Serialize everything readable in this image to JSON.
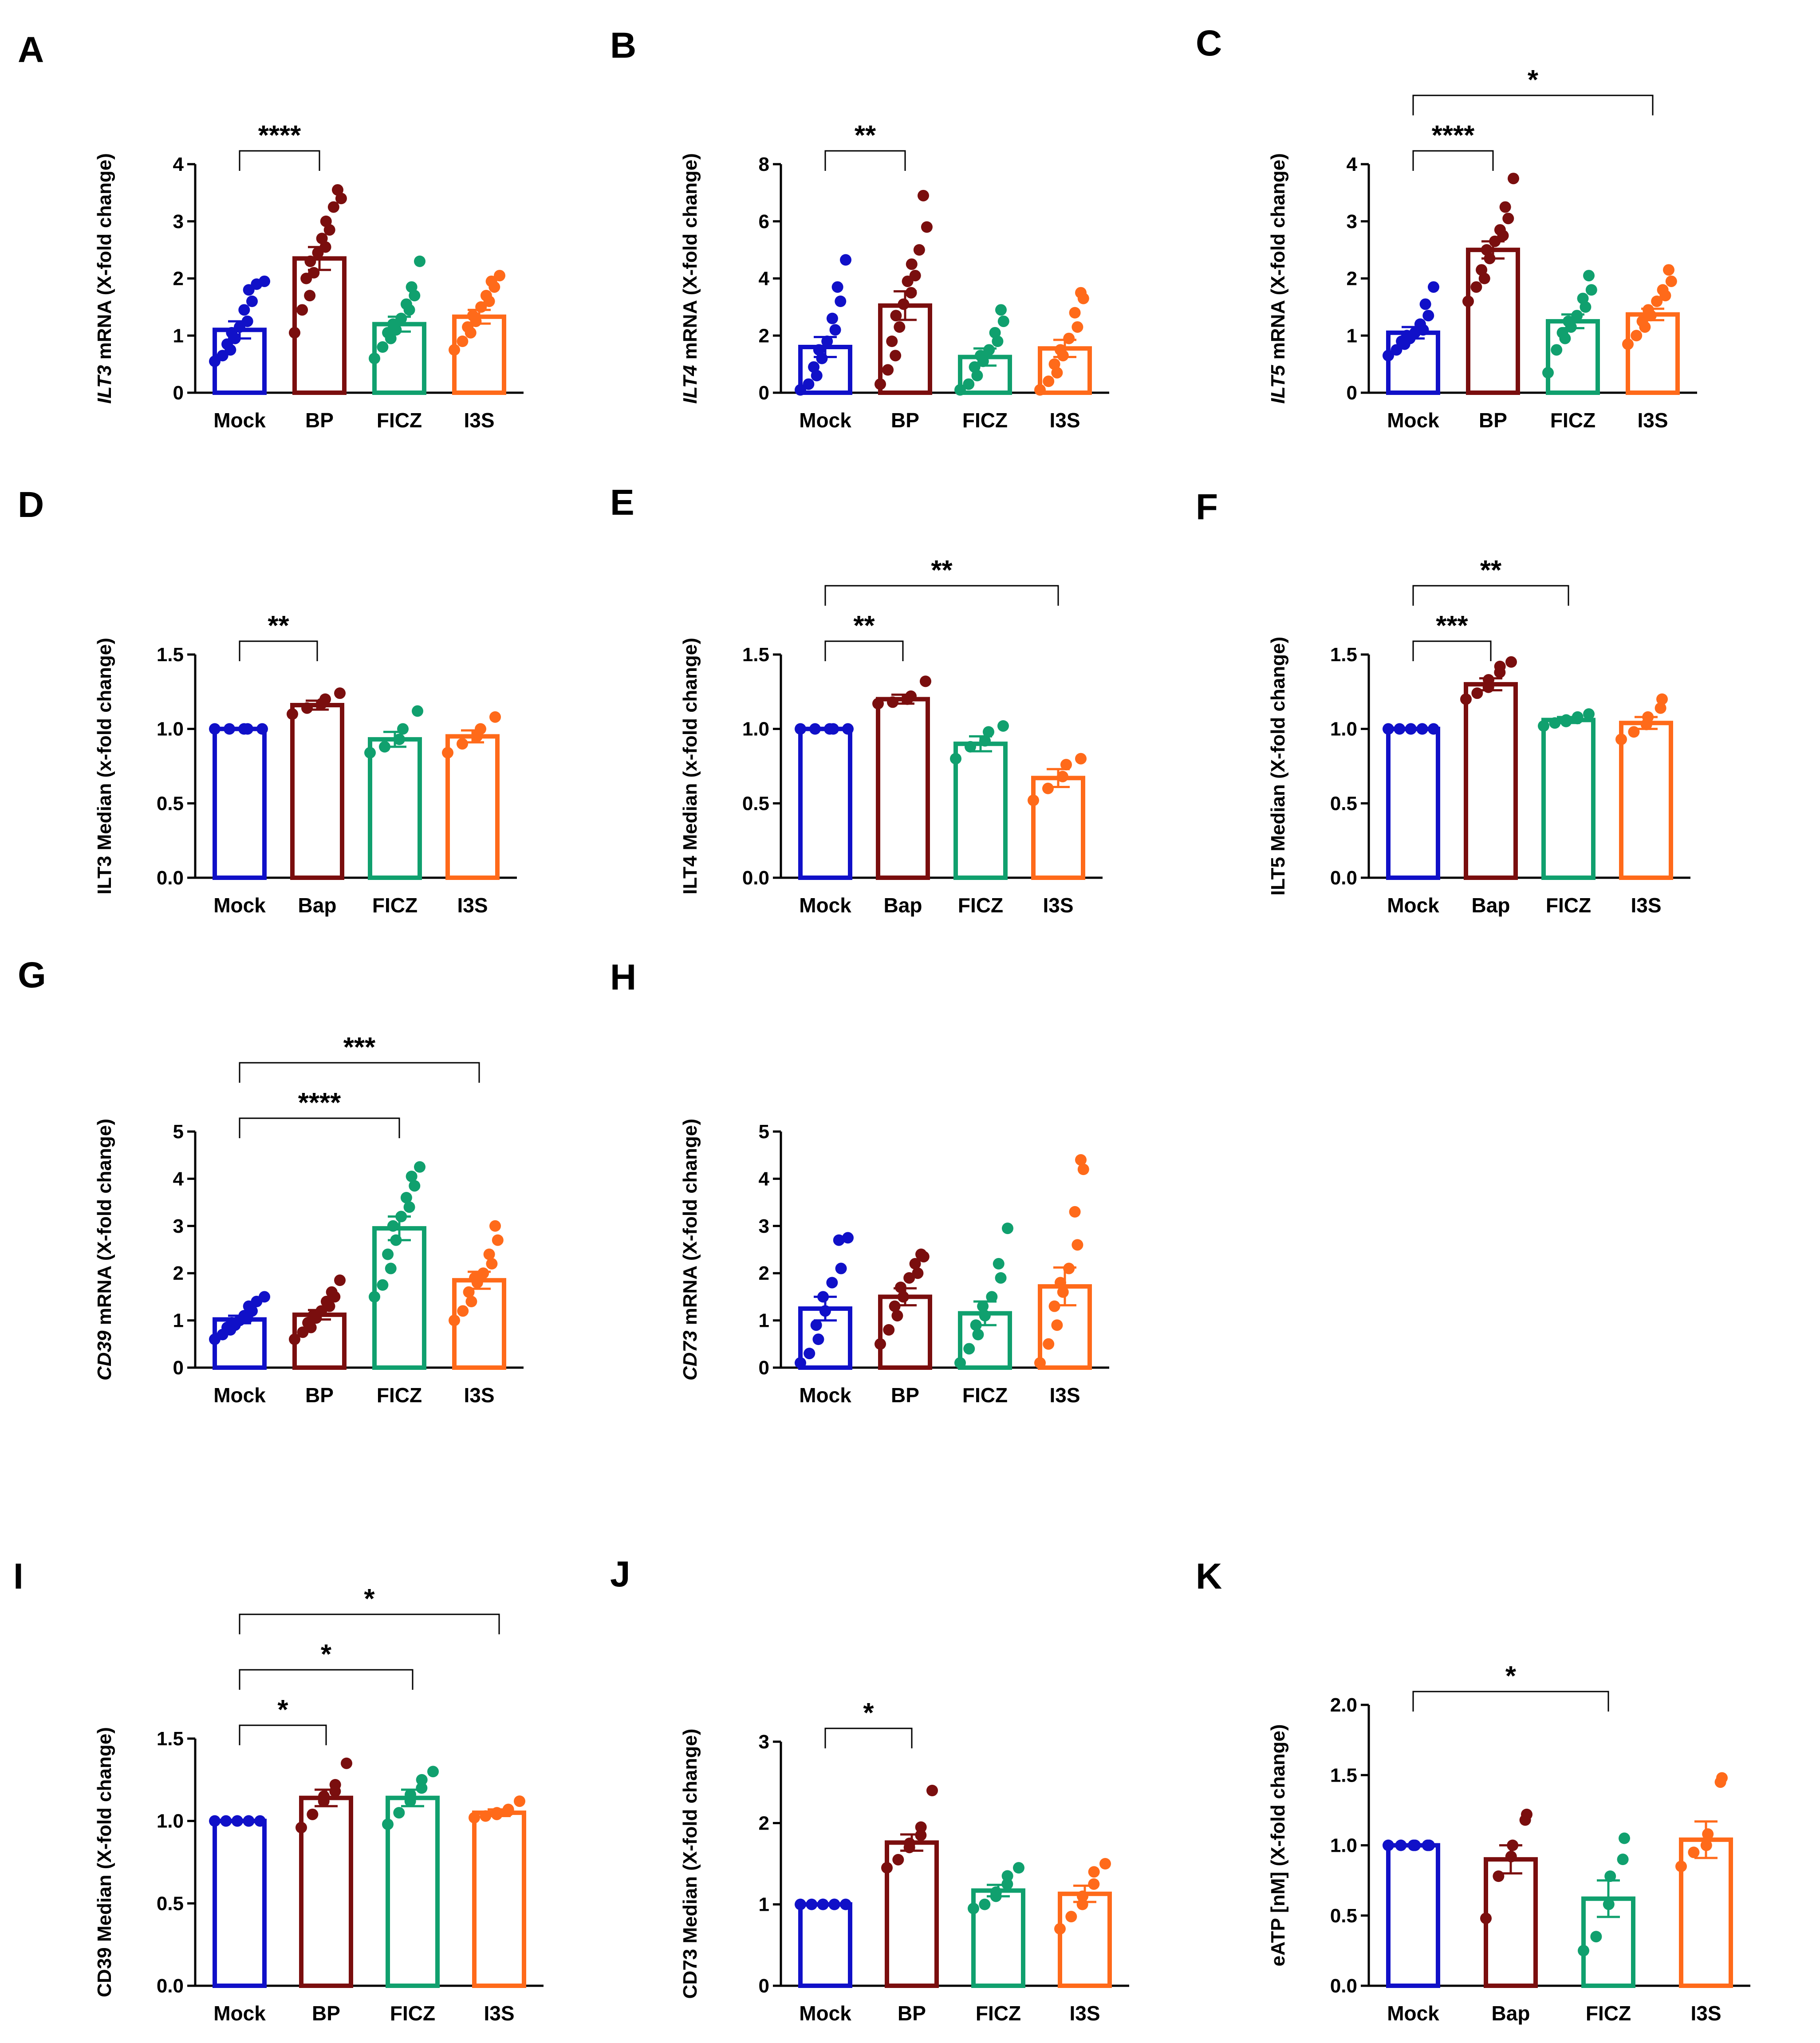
{
  "colors": {
    "Mock": "#1010c8",
    "BP": "#7a0e0e",
    "Bap": "#7a0e0e",
    "FICZ": "#10a06e",
    "I3S": "#ff6a1a"
  },
  "chart_data": [
    {
      "panel": "A",
      "type": "bar",
      "ylabel_italic": "ILT3",
      "ylabel": "mRNA (X-fold change)",
      "ylim": [
        0,
        4
      ],
      "yticks": [
        "0",
        "1",
        "2",
        "3",
        "4"
      ],
      "categories": [
        "Mock",
        "BP",
        "FICZ",
        "I3S"
      ],
      "values": [
        1.1,
        2.35,
        1.2,
        1.33
      ],
      "errors": [
        0.15,
        0.2,
        0.13,
        0.12
      ],
      "points": [
        [
          0.55,
          0.65,
          0.75,
          0.85,
          0.95,
          1.05,
          1.15,
          1.25,
          1.45,
          1.6,
          1.8,
          1.9,
          1.95
        ],
        [
          1.05,
          1.45,
          1.7,
          2.0,
          2.1,
          2.3,
          2.45,
          2.55,
          2.7,
          2.85,
          3.0,
          3.25,
          3.4,
          3.55
        ],
        [
          0.6,
          0.8,
          0.95,
          1.05,
          1.1,
          1.2,
          1.3,
          1.45,
          1.55,
          1.7,
          1.85,
          2.3
        ],
        [
          0.75,
          0.9,
          1.05,
          1.15,
          1.25,
          1.35,
          1.5,
          1.6,
          1.7,
          1.85,
          1.95,
          2.05
        ]
      ],
      "significance": [
        {
          "from": 0,
          "to": 1,
          "label": "****"
        }
      ]
    },
    {
      "panel": "B",
      "type": "bar",
      "ylabel_italic": "ILT4",
      "ylabel": "mRNA (X-fold change)",
      "ylim": [
        0,
        8
      ],
      "yticks": [
        "0",
        "2",
        "4",
        "6",
        "8"
      ],
      "categories": [
        "Mock",
        "BP",
        "FICZ",
        "I3S"
      ],
      "values": [
        1.6,
        3.05,
        1.25,
        1.55
      ],
      "errors": [
        0.35,
        0.5,
        0.3,
        0.3
      ],
      "points": [
        [
          0.1,
          0.3,
          0.6,
          0.9,
          1.2,
          1.5,
          1.8,
          2.2,
          2.6,
          3.2,
          3.7,
          4.65
        ],
        [
          0.3,
          0.8,
          1.3,
          1.8,
          2.3,
          2.7,
          3.1,
          3.5,
          3.9,
          4.1,
          4.5,
          5.0,
          5.8,
          6.9
        ],
        [
          0.1,
          0.3,
          0.6,
          0.9,
          1.1,
          1.3,
          1.5,
          1.8,
          2.1,
          2.5,
          2.9
        ],
        [
          0.1,
          0.4,
          0.7,
          1.0,
          1.3,
          1.5,
          1.9,
          2.3,
          2.8,
          3.3,
          3.5
        ]
      ],
      "significance": [
        {
          "from": 0,
          "to": 1,
          "label": "**"
        }
      ]
    },
    {
      "panel": "C",
      "type": "bar",
      "ylabel_italic": "ILT5",
      "ylabel": "mRNA (X-fold change)",
      "ylim": [
        0,
        4
      ],
      "yticks": [
        "0",
        "1",
        "2",
        "3",
        "4"
      ],
      "categories": [
        "Mock",
        "BP",
        "FICZ",
        "I3S"
      ],
      "values": [
        1.05,
        2.5,
        1.25,
        1.37
      ],
      "errors": [
        0.1,
        0.15,
        0.12,
        0.1
      ],
      "points": [
        [
          0.65,
          0.75,
          0.85,
          0.9,
          0.95,
          1.0,
          1.05,
          1.1,
          1.2,
          1.35,
          1.55,
          1.85
        ],
        [
          1.6,
          1.85,
          2.0,
          2.15,
          2.35,
          2.5,
          2.65,
          2.75,
          2.85,
          3.05,
          3.25,
          3.75
        ],
        [
          0.35,
          0.75,
          0.95,
          1.05,
          1.15,
          1.25,
          1.35,
          1.5,
          1.65,
          1.8,
          2.05
        ],
        [
          0.85,
          1.0,
          1.15,
          1.25,
          1.35,
          1.45,
          1.6,
          1.7,
          1.8,
          1.95,
          2.15
        ]
      ],
      "significance": [
        {
          "from": 0,
          "to": 1,
          "label": "****"
        },
        {
          "from": 0,
          "to": 3,
          "label": "*"
        }
      ]
    },
    {
      "panel": "D",
      "type": "bar",
      "ylabel": "ILT3 Median (x-fold change)",
      "ylim": [
        0,
        1.5
      ],
      "yticks": [
        "0.0",
        "0.5",
        "1.0",
        "1.5"
      ],
      "categories": [
        "Mock",
        "Bap",
        "FICZ",
        "I3S"
      ],
      "values": [
        1.0,
        1.16,
        0.93,
        0.95
      ],
      "errors": [
        0.0,
        0.03,
        0.05,
        0.04
      ],
      "points": [
        [
          1.0,
          1.0,
          1.0,
          1.0,
          1.0
        ],
        [
          1.1,
          1.14,
          1.17,
          1.2,
          1.24
        ],
        [
          0.84,
          0.88,
          0.93,
          1.0,
          1.12
        ],
        [
          0.84,
          0.9,
          0.95,
          1.0,
          1.08
        ]
      ],
      "significance": [
        {
          "from": 0,
          "to": 1,
          "label": "**"
        }
      ]
    },
    {
      "panel": "E",
      "type": "bar",
      "ylabel": "ILT4 Median (x-fold change)",
      "ylim": [
        0,
        1.5
      ],
      "yticks": [
        "0.0",
        "0.5",
        "1.0",
        "1.5"
      ],
      "categories": [
        "Mock",
        "Bap",
        "FICZ",
        "I3S"
      ],
      "values": [
        1.0,
        1.2,
        0.9,
        0.67
      ],
      "errors": [
        0.0,
        0.03,
        0.05,
        0.06
      ],
      "points": [
        [
          1.0,
          1.0,
          1.0,
          1.0,
          1.0
        ],
        [
          1.17,
          1.18,
          1.2,
          1.22,
          1.32
        ],
        [
          0.8,
          0.88,
          0.92,
          0.98,
          1.02
        ],
        [
          0.52,
          0.6,
          0.68,
          0.76,
          0.8
        ]
      ],
      "significance": [
        {
          "from": 0,
          "to": 1,
          "label": "**"
        },
        {
          "from": 0,
          "to": 3,
          "label": "**"
        }
      ]
    },
    {
      "panel": "F",
      "type": "bar",
      "ylabel": "ILT5 Median (X-fold change)",
      "ylim": [
        0,
        1.5
      ],
      "yticks": [
        "0.0",
        "0.5",
        "1.0",
        "1.5"
      ],
      "categories": [
        "Mock",
        "Bap",
        "FICZ",
        "I3S"
      ],
      "values": [
        1.0,
        1.3,
        1.06,
        1.04
      ],
      "errors": [
        0.0,
        0.04,
        0.02,
        0.04
      ],
      "points": [
        [
          1.0,
          1.0,
          1.0,
          1.0,
          1.0,
          1.0,
          1.0
        ],
        [
          1.2,
          1.24,
          1.28,
          1.33,
          1.38,
          1.42,
          1.45
        ],
        [
          1.02,
          1.04,
          1.05,
          1.06,
          1.07,
          1.08,
          1.1
        ],
        [
          0.93,
          0.98,
          1.03,
          1.08,
          1.14,
          1.2
        ]
      ],
      "significance": [
        {
          "from": 0,
          "to": 1,
          "label": "***"
        },
        {
          "from": 0,
          "to": 2,
          "label": "**"
        }
      ]
    },
    {
      "panel": "G",
      "type": "bar",
      "ylabel_italic": "CD39",
      "ylabel": "mRNA (X-fold change)",
      "ylim": [
        0,
        5
      ],
      "yticks": [
        "0",
        "1",
        "2",
        "3",
        "4",
        "5"
      ],
      "categories": [
        "Mock",
        "BP",
        "FICZ",
        "I3S"
      ],
      "values": [
        1.02,
        1.12,
        2.95,
        1.85
      ],
      "errors": [
        0.08,
        0.1,
        0.25,
        0.18
      ],
      "points": [
        [
          0.6,
          0.7,
          0.8,
          0.85,
          0.9,
          0.95,
          1.0,
          1.05,
          1.1,
          1.2,
          1.3,
          1.4,
          1.5
        ],
        [
          0.6,
          0.75,
          0.85,
          0.95,
          1.05,
          1.1,
          1.2,
          1.3,
          1.4,
          1.5,
          1.6,
          1.85
        ],
        [
          1.5,
          1.75,
          2.1,
          2.4,
          2.7,
          3.0,
          3.2,
          3.4,
          3.6,
          3.85,
          4.05,
          4.25
        ],
        [
          1.0,
          1.2,
          1.4,
          1.6,
          1.8,
          1.9,
          2.0,
          2.2,
          2.4,
          2.7,
          3.0
        ]
      ],
      "significance": [
        {
          "from": 0,
          "to": 2,
          "label": "****"
        },
        {
          "from": 0,
          "to": 3,
          "label": "***"
        }
      ]
    },
    {
      "panel": "H",
      "type": "bar",
      "ylabel_italic": "CD73",
      "ylabel": "mRNA (X-fold change)",
      "ylim": [
        0,
        5
      ],
      "yticks": [
        "0",
        "1",
        "2",
        "3",
        "4",
        "5"
      ],
      "categories": [
        "Mock",
        "BP",
        "FICZ",
        "I3S"
      ],
      "values": [
        1.25,
        1.5,
        1.15,
        1.72
      ],
      "errors": [
        0.25,
        0.18,
        0.25,
        0.4
      ],
      "points": [
        [
          0.1,
          0.3,
          0.6,
          0.9,
          1.2,
          1.5,
          1.8,
          2.1,
          2.7,
          2.75
        ],
        [
          0.5,
          0.8,
          1.1,
          1.3,
          1.5,
          1.7,
          1.9,
          2.0,
          2.2,
          2.35,
          2.4
        ],
        [
          0.1,
          0.4,
          0.7,
          0.9,
          1.1,
          1.3,
          1.5,
          1.9,
          2.2,
          2.95
        ],
        [
          0.1,
          0.5,
          0.9,
          1.3,
          1.6,
          1.8,
          2.1,
          2.6,
          3.3,
          4.2,
          4.4
        ]
      ],
      "significance": []
    },
    {
      "panel": "I",
      "type": "bar",
      "ylabel": "CD39 Median (X-fold change)",
      "ylim": [
        0,
        1.5
      ],
      "yticks": [
        "0.0",
        "0.5",
        "1.0",
        "1.5"
      ],
      "categories": [
        "Mock",
        "BP",
        "FICZ",
        "I3S"
      ],
      "values": [
        1.0,
        1.14,
        1.14,
        1.05
      ],
      "errors": [
        0.0,
        0.05,
        0.05,
        0.02
      ],
      "points": [
        [
          1.0,
          1.0,
          1.0,
          1.0,
          1.0,
          1.0,
          1.0
        ],
        [
          0.96,
          1.04,
          1.12,
          1.15,
          1.18,
          1.22,
          1.35
        ],
        [
          0.98,
          1.05,
          1.12,
          1.16,
          1.2,
          1.25,
          1.3
        ],
        [
          1.02,
          1.03,
          1.04,
          1.05,
          1.06,
          1.07,
          1.12
        ]
      ],
      "significance": [
        {
          "from": 0,
          "to": 1,
          "label": "*"
        },
        {
          "from": 0,
          "to": 2,
          "label": "*"
        },
        {
          "from": 0,
          "to": 3,
          "label": "*"
        }
      ]
    },
    {
      "panel": "J",
      "type": "bar",
      "ylabel": "CD73 Median (X-fold change)",
      "ylim": [
        0,
        3
      ],
      "yticks": [
        "0",
        "1",
        "2",
        "3"
      ],
      "categories": [
        "Mock",
        "BP",
        "FICZ",
        "I3S"
      ],
      "values": [
        1.0,
        1.76,
        1.17,
        1.13
      ],
      "errors": [
        0.0,
        0.1,
        0.07,
        0.1
      ],
      "points": [
        [
          1.0,
          1.0,
          1.0,
          1.0,
          1.0,
          1.0,
          1.0
        ],
        [
          1.45,
          1.55,
          1.7,
          1.75,
          1.85,
          1.95,
          2.4
        ],
        [
          0.95,
          1.0,
          1.1,
          1.15,
          1.25,
          1.35,
          1.45
        ],
        [
          0.7,
          0.85,
          1.0,
          1.1,
          1.25,
          1.4,
          1.5
        ]
      ],
      "significance": [
        {
          "from": 0,
          "to": 1,
          "label": "*"
        }
      ]
    },
    {
      "panel": "K",
      "type": "bar",
      "ylabel": "eATP [nM] (X-fold change)",
      "ylim": [
        0,
        2
      ],
      "yticks": [
        "0.0",
        "0.5",
        "1.0",
        "1.5",
        "2.0"
      ],
      "categories": [
        "Mock",
        "Bap",
        "FICZ",
        "I3S"
      ],
      "values": [
        1.0,
        0.9,
        0.62,
        1.04
      ],
      "errors": [
        0.0,
        0.1,
        0.13,
        0.13
      ],
      "points": [
        [
          1.0,
          1.0,
          1.0,
          1.0,
          1.0,
          1.0
        ],
        [
          0.48,
          0.78,
          0.92,
          1.0,
          1.18,
          1.22
        ],
        [
          0.25,
          0.35,
          0.58,
          0.78,
          0.9,
          1.05
        ],
        [
          0.85,
          0.95,
          1.0,
          1.08,
          1.45,
          1.48
        ]
      ],
      "significance": [
        {
          "from": 0,
          "to": 2,
          "label": "*"
        }
      ]
    }
  ]
}
